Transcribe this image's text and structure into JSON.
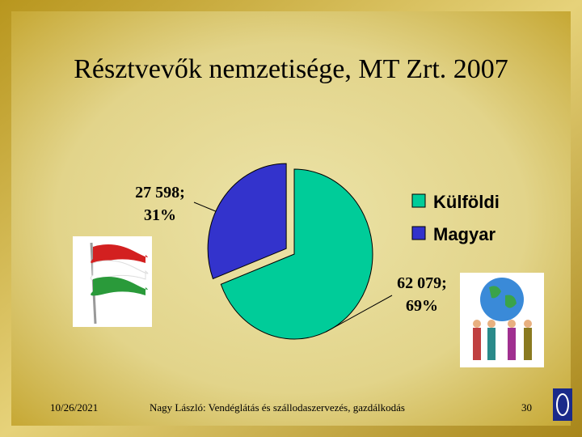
{
  "chart_data": {
    "type": "pie",
    "title": "Résztvevők nemzetisége, MT Zrt. 2007",
    "categories": [
      "Külföldi",
      "Magyar"
    ],
    "values": [
      62079,
      27598
    ],
    "value_labels": [
      "62 079;",
      "27 598;"
    ],
    "percentages": [
      69,
      31
    ],
    "percentage_labels": [
      "69%",
      "31%"
    ],
    "colors": [
      "#00cc99",
      "#3333cc"
    ],
    "legend": "right"
  },
  "footer": {
    "date": "10/26/2021",
    "text": "Nagy László: Vendéglátás és szállodaszervezés, gazdálkodás",
    "page": "30"
  }
}
